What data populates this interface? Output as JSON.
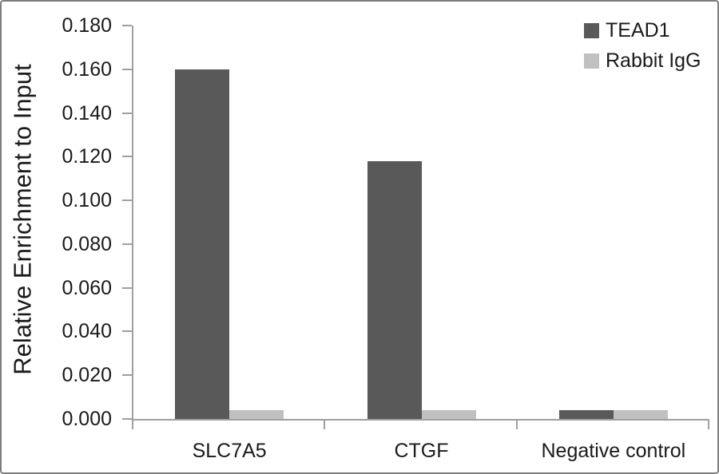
{
  "figure": {
    "background": "#ffffff",
    "frame_color": "#7d7d7d"
  },
  "chart_data": {
    "type": "bar",
    "title": "",
    "xlabel": "",
    "ylabel": "Relative Enrichment to Input",
    "categories": [
      "SLC7A5",
      "CTGF",
      "Negative control"
    ],
    "series": [
      {
        "name": "TEAD1",
        "color": "#595959",
        "values": [
          0.16,
          0.118,
          0.004
        ]
      },
      {
        "name": "Rabbit IgG",
        "color": "#c0c0c0",
        "values": [
          0.004,
          0.004,
          0.004
        ]
      }
    ],
    "ylim": [
      0,
      0.18
    ],
    "ytick_step": 0.02,
    "ytick_labels": [
      "0.000",
      "0.020",
      "0.040",
      "0.060",
      "0.080",
      "0.100",
      "0.120",
      "0.140",
      "0.160",
      "0.180"
    ],
    "grid": false,
    "legend_position": "top-right",
    "axis_color": "#9f9f9f",
    "text_color": "#1a1a1a"
  }
}
